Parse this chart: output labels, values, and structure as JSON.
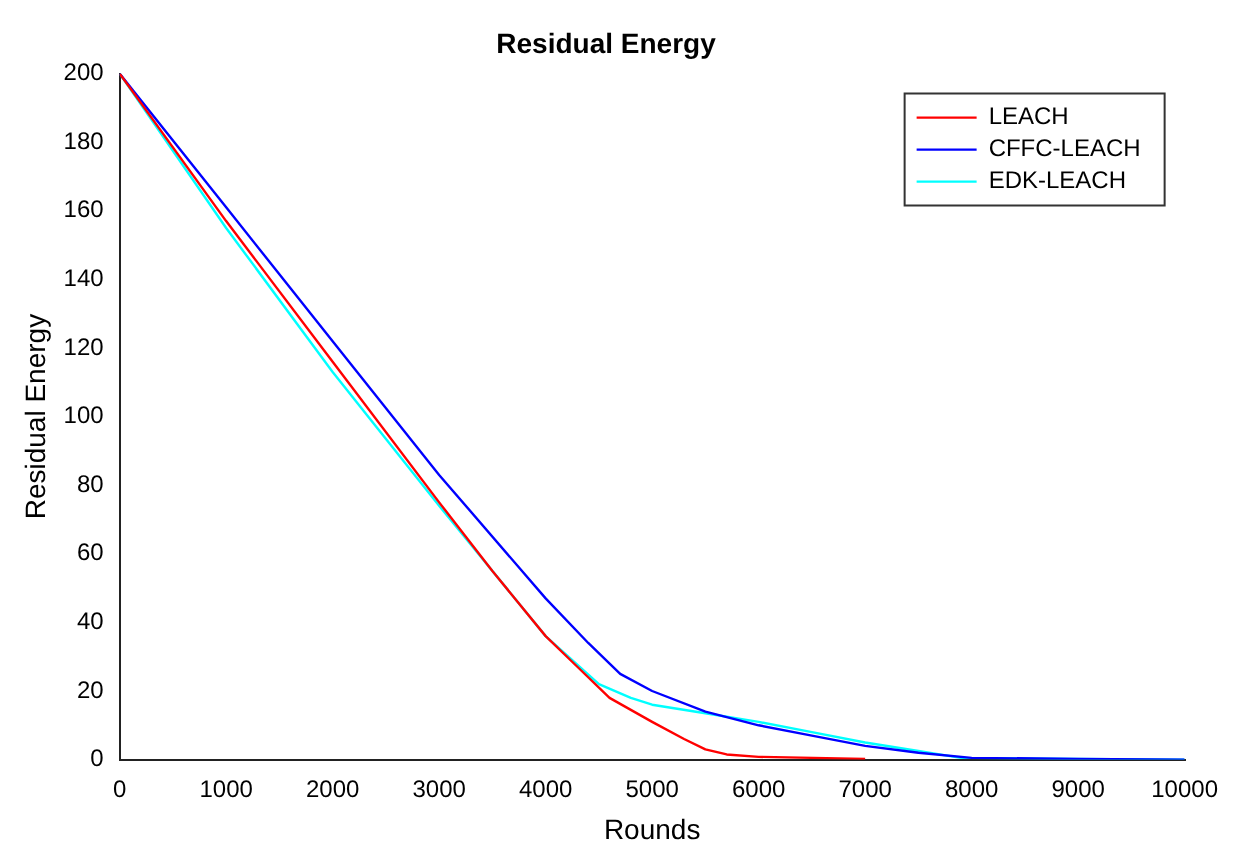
{
  "chart_data": {
    "type": "line",
    "title": "Residual Energy",
    "xlabel": "Rounds",
    "ylabel": "Residual Energy",
    "xlim": [
      0,
      10000
    ],
    "xticks": [
      0,
      1000,
      2000,
      3000,
      4000,
      5000,
      6000,
      7000,
      8000,
      9000,
      10000
    ],
    "ylim": [
      0,
      200
    ],
    "yticks": [
      0,
      20,
      40,
      60,
      80,
      100,
      120,
      140,
      160,
      180,
      200
    ],
    "grid": false,
    "legend": "top right",
    "marker": "none",
    "line_style": "solid",
    "series": [
      {
        "name": "LEACH",
        "color": "#ff0000",
        "x": [
          0,
          1000,
          2000,
          3000,
          3500,
          4000,
          4300,
          4600,
          5000,
          5300,
          5500,
          5700,
          6000,
          7000
        ],
        "values": [
          200,
          157,
          116,
          75,
          55,
          36,
          27,
          18,
          11,
          6,
          3,
          1.5,
          0.8,
          0.2
        ]
      },
      {
        "name": "CFFC-LEACH",
        "color": "#0000ff",
        "x": [
          0,
          1000,
          2000,
          3000,
          4000,
          4400,
          4700,
          5000,
          5500,
          6000,
          6500,
          7000,
          7500,
          8000,
          9000,
          10000
        ],
        "values": [
          200,
          161,
          122,
          83,
          47,
          34,
          25,
          20,
          14,
          10,
          7,
          4,
          2,
          0.5,
          0.2,
          0
        ]
      },
      {
        "name": "EDK-LEACH",
        "color": "#00ffff",
        "x": [
          0,
          1000,
          2000,
          3000,
          4000,
          4500,
          4800,
          5000,
          5500,
          6000,
          6500,
          7000,
          7500,
          7900,
          9000,
          10000
        ],
        "values": [
          200,
          155,
          113,
          74,
          36,
          22,
          18,
          16,
          13.5,
          11,
          8,
          5,
          2.5,
          0.5,
          0.2,
          0
        ]
      }
    ]
  }
}
